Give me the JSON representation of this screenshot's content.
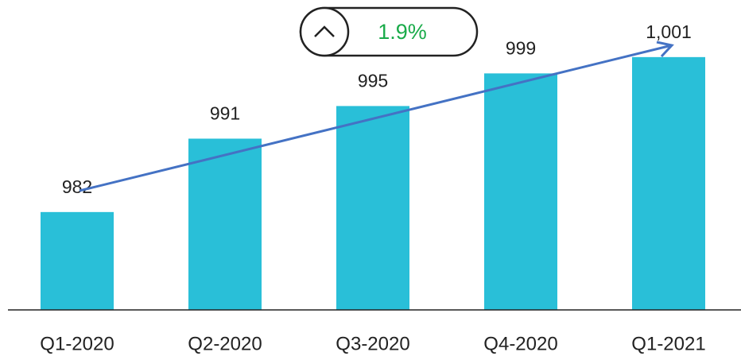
{
  "chart_data": {
    "type": "bar",
    "categories": [
      "Q1-2020",
      "Q2-2020",
      "Q3-2020",
      "Q4-2020",
      "Q1-2021"
    ],
    "values": [
      982,
      991,
      995,
      999,
      1001
    ],
    "value_labels": [
      "982",
      "991",
      "995",
      "999",
      "1,001"
    ],
    "color": "#29bfd8",
    "ylim": [
      970,
      1008
    ],
    "annotation": "1.9%"
  }
}
